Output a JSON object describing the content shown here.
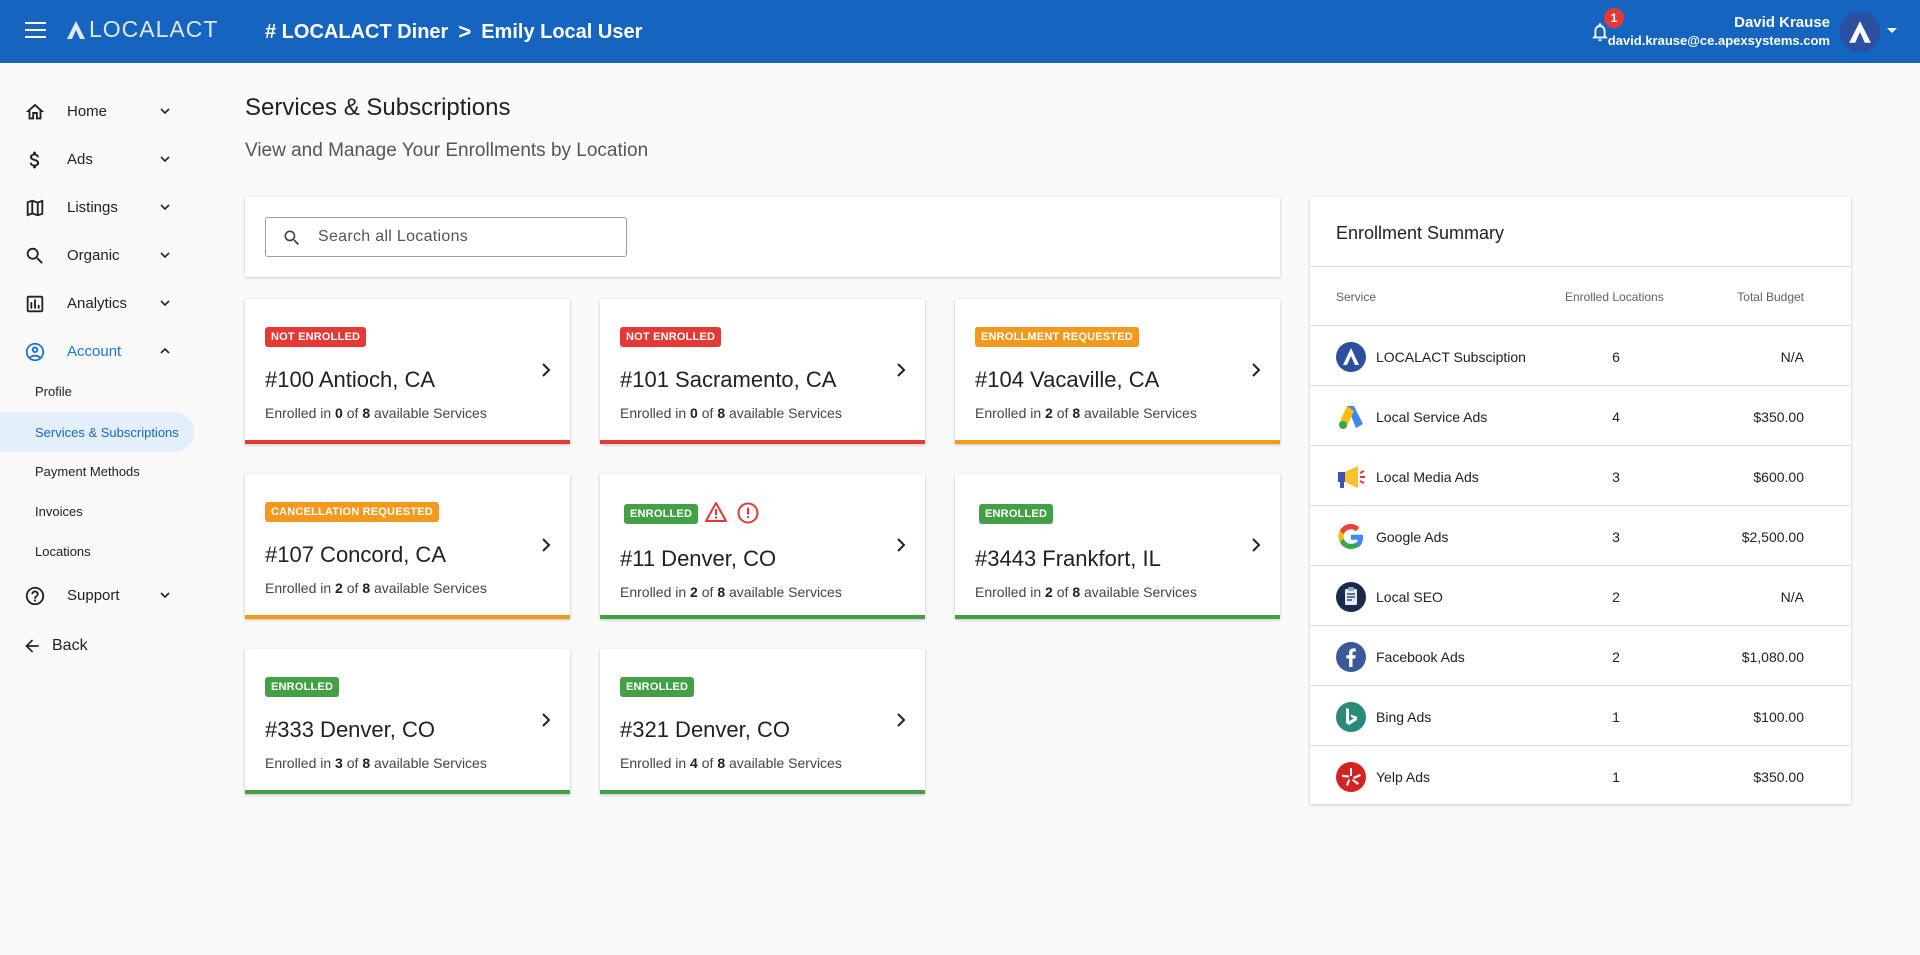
{
  "header": {
    "logo": "LOCALACT",
    "breadcrumb": [
      "# LOCALACT Diner",
      "Emily Local User"
    ],
    "breadcrumb_sep": ">",
    "notifications_count": "1",
    "user_name": "David Krause",
    "user_email": "david.krause@ce.apexsystems.com"
  },
  "sidebar": {
    "items": [
      {
        "label": "Home",
        "icon": "home-icon"
      },
      {
        "label": "Ads",
        "icon": "dollar-icon"
      },
      {
        "label": "Listings",
        "icon": "map-icon"
      },
      {
        "label": "Organic",
        "icon": "search-icon"
      },
      {
        "label": "Analytics",
        "icon": "analytics-icon"
      },
      {
        "label": "Account",
        "icon": "account-icon"
      }
    ],
    "account_sub": [
      "Profile",
      "Services & Subscriptions",
      "Payment Methods",
      "Invoices",
      "Locations"
    ],
    "support": "Support",
    "back": "Back"
  },
  "main": {
    "title": "Services & Subscriptions",
    "subtitle": "View and Manage Your Enrollments by Location",
    "search_placeholder": "Search all Locations",
    "cards": [
      {
        "badge": "NOT ENROLLED",
        "title": "#100 Antioch, CA",
        "enrolled": "0",
        "available": "8"
      },
      {
        "badge": "NOT ENROLLED",
        "title": "#101 Sacramento, CA",
        "enrolled": "0",
        "available": "8"
      },
      {
        "badge": "ENROLLMENT REQUESTED",
        "title": "#104 Vacaville, CA",
        "enrolled": "2",
        "available": "8"
      },
      {
        "badge": "CANCELLATION REQUESTED",
        "title": "#107 Concord, CA",
        "enrolled": "2",
        "available": "8"
      },
      {
        "badge": "ENROLLED",
        "title": "#11 Denver, CO",
        "enrolled": "2",
        "available": "8"
      },
      {
        "badge": "ENROLLED",
        "title": "#3443 Frankfort, IL",
        "enrolled": "2",
        "available": "8"
      },
      {
        "badge": "ENROLLED",
        "title": "#333 Denver, CO",
        "enrolled": "3",
        "available": "8"
      },
      {
        "badge": "ENROLLED",
        "title": "#321 Denver, CO",
        "enrolled": "4",
        "available": "8"
      }
    ],
    "desc_prefix": "Enrolled in",
    "desc_of": "of",
    "desc_suffix": "available Services"
  },
  "summary": {
    "title": "Enrollment Summary",
    "columns": [
      "Service",
      "Enrolled Locations",
      "Total Budget"
    ],
    "rows": [
      {
        "service": "LOCALACT Subsciption",
        "count": "6",
        "budget": "N/A",
        "icon": "localact-logo-icon"
      },
      {
        "service": "Local Service Ads",
        "count": "4",
        "budget": "$350.00",
        "icon": "google-ads-icon"
      },
      {
        "service": "Local Media Ads",
        "count": "3",
        "budget": "$600.00",
        "icon": "megaphone-icon"
      },
      {
        "service": "Google Ads",
        "count": "3",
        "budget": "$2,500.00",
        "icon": "google-icon"
      },
      {
        "service": "Local SEO",
        "count": "2",
        "budget": "N/A",
        "icon": "seo-clipboard-icon"
      },
      {
        "service": "Facebook Ads",
        "count": "2",
        "budget": "$1,080.00",
        "icon": "facebook-icon"
      },
      {
        "service": "Bing Ads",
        "count": "1",
        "budget": "$100.00",
        "icon": "bing-icon"
      },
      {
        "service": "Yelp Ads",
        "count": "1",
        "budget": "$350.00",
        "icon": "yelp-icon"
      }
    ]
  },
  "colors": {
    "primary": "#1565c0",
    "not_enrolled": "#e53935",
    "requested": "#f39a1e",
    "enrolled": "#43a047"
  }
}
